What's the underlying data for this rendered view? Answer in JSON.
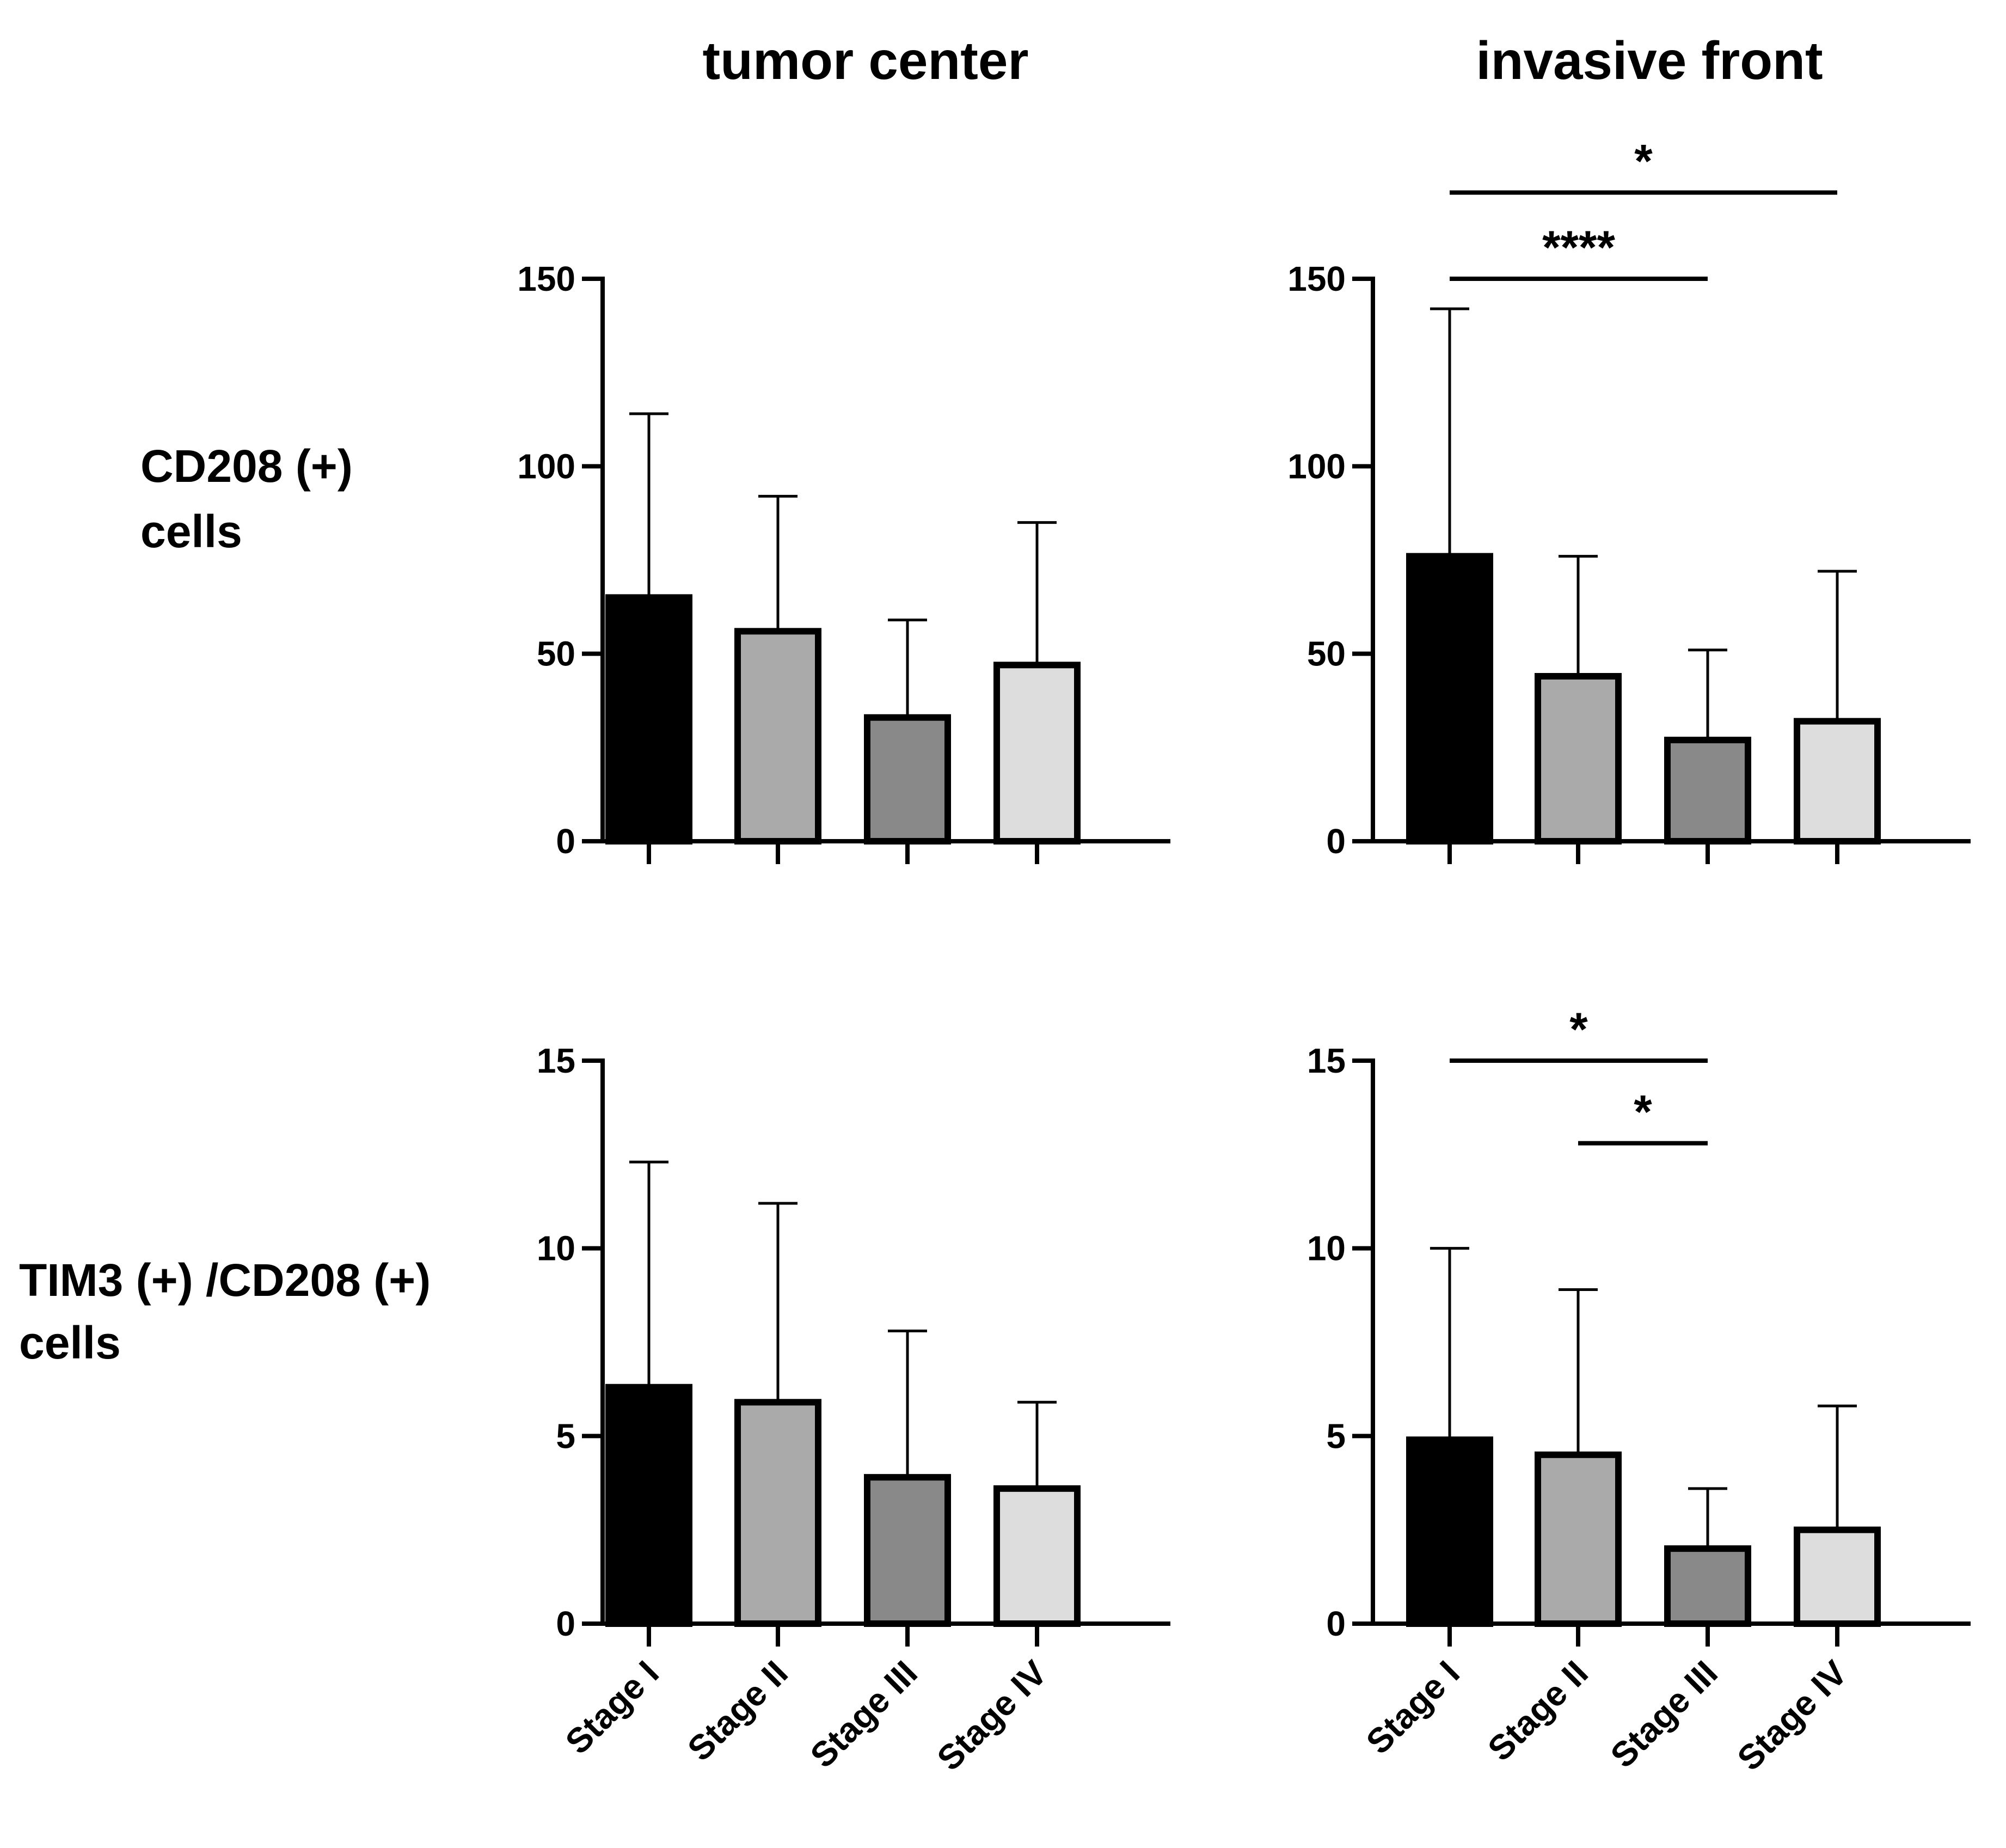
{
  "columns": [
    "tumor center",
    "invasive front"
  ],
  "rows": [
    {
      "line1": "CD208 (+)",
      "line2": "cells"
    },
    {
      "line1": "TIM3 (+) /CD208 (+)",
      "line2": "cells"
    }
  ],
  "colors": {
    "Stage I": "#000000",
    "Stage II": "#aaaaaa",
    "Stage III": "#898989",
    "Stage IV": "#dddddd",
    "axis": "#000000"
  },
  "chart_data": [
    {
      "type": "bar",
      "title": "tumor center",
      "ylabel": "CD208 (+) cells",
      "categories": [
        "Stage I",
        "Stage II",
        "Stage III",
        "Stage IV"
      ],
      "values": [
        65,
        56,
        33,
        47
      ],
      "error_upper": [
        114,
        92,
        59,
        85
      ],
      "ylim": [
        0,
        150
      ],
      "yticks": [
        0,
        50,
        100,
        150
      ],
      "show_category_labels": false,
      "significance": []
    },
    {
      "type": "bar",
      "title": "invasive front",
      "ylabel": "CD208 (+) cells",
      "categories": [
        "Stage I",
        "Stage II",
        "Stage III",
        "Stage IV"
      ],
      "values": [
        76,
        44,
        27,
        32
      ],
      "error_upper": [
        142,
        76,
        51,
        72
      ],
      "ylim": [
        0,
        150
      ],
      "yticks": [
        0,
        50,
        100,
        150
      ],
      "show_category_labels": false,
      "significance": [
        {
          "from": "Stage I",
          "to": "Stage III",
          "label": "****",
          "level": 150
        },
        {
          "from": "Stage I",
          "to": "Stage IV",
          "label": "*",
          "level": 173
        }
      ]
    },
    {
      "type": "bar",
      "title": "tumor center",
      "ylabel": "TIM3 (+) /CD208 (+) cells",
      "categories": [
        "Stage I",
        "Stage II",
        "Stage III",
        "Stage IV"
      ],
      "values": [
        6.3,
        5.9,
        3.9,
        3.6
      ],
      "error_upper": [
        12.3,
        11.2,
        7.8,
        5.9
      ],
      "ylim": [
        0,
        15
      ],
      "yticks": [
        0,
        5,
        10,
        15
      ],
      "show_category_labels": true,
      "significance": []
    },
    {
      "type": "bar",
      "title": "invasive front",
      "ylabel": "TIM3 (+) /CD208 (+) cells",
      "categories": [
        "Stage I",
        "Stage II",
        "Stage III",
        "Stage IV"
      ],
      "values": [
        4.9,
        4.5,
        2.0,
        2.5
      ],
      "error_upper": [
        10.0,
        8.9,
        3.6,
        5.8
      ],
      "ylim": [
        0,
        15
      ],
      "yticks": [
        0,
        5,
        10,
        15
      ],
      "show_category_labels": true,
      "significance": [
        {
          "from": "Stage I",
          "to": "Stage III",
          "label": "*",
          "level": 15
        },
        {
          "from": "Stage II",
          "to": "Stage III",
          "label": "*",
          "level": 12.8
        }
      ]
    }
  ]
}
